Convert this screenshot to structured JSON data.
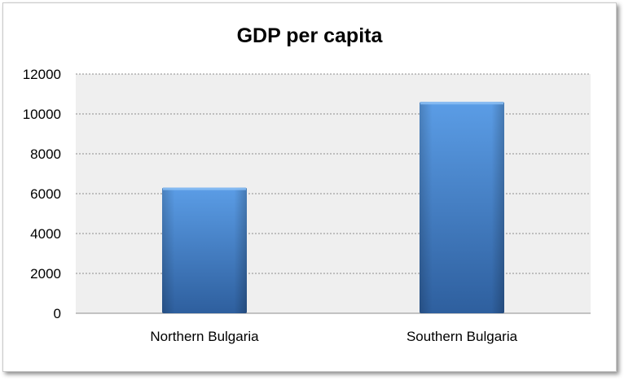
{
  "chart_data": {
    "type": "bar",
    "title": "GDP per capita",
    "xlabel": "",
    "ylabel": "",
    "categories": [
      "Northern Bulgaria",
      "Southern Bulgaria"
    ],
    "values": [
      6300,
      10600
    ],
    "ylim": [
      0,
      12000
    ],
    "yticks": [
      0,
      2000,
      4000,
      6000,
      8000,
      10000,
      12000
    ],
    "grid": true,
    "legend": "none",
    "colors": {
      "bar_top": "#5b9de6",
      "bar_bottom": "#2e5f9e",
      "plot_background": "#efefef",
      "gridline": "#8c8c8c"
    }
  }
}
